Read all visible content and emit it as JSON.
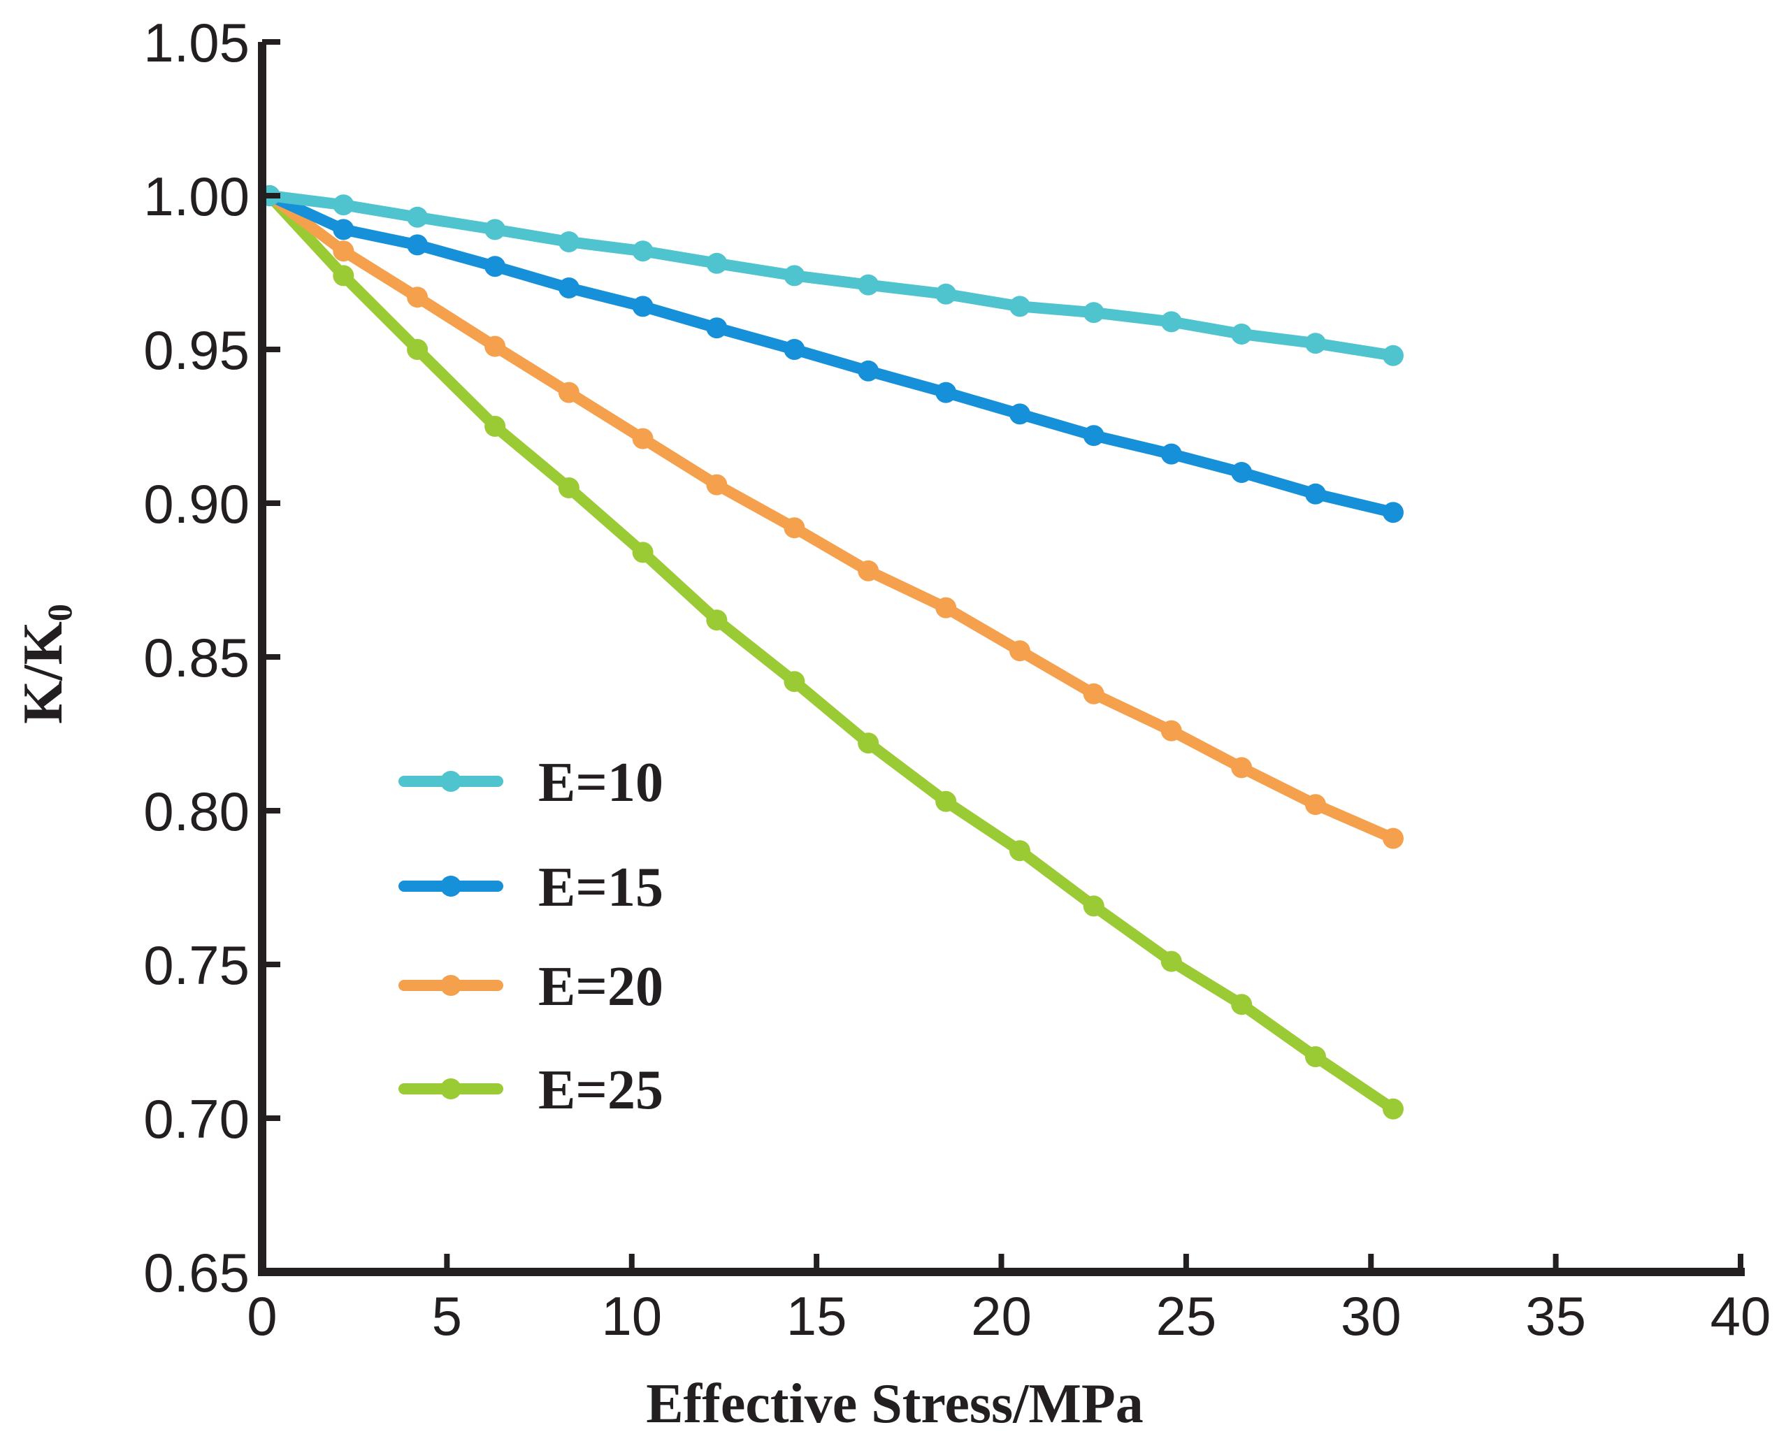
{
  "chart_data": {
    "type": "line",
    "title": "",
    "xlabel": "Effective Stress/MPa",
    "ylabel": {
      "main": "K/K",
      "sub": "0"
    },
    "xlim": [
      0,
      40
    ],
    "ylim": [
      0.65,
      1.05
    ],
    "xticks": [
      "0",
      "5",
      "10",
      "15",
      "20",
      "25",
      "30",
      "35",
      "40"
    ],
    "yticks": [
      "0.65",
      "0.70",
      "0.75",
      "0.80",
      "0.85",
      "0.90",
      "0.95",
      "1.00",
      "1.05"
    ],
    "grid": false,
    "legend_position": "lower-left",
    "x": [
      0.2,
      2.2,
      4.2,
      6.3,
      8.3,
      10.3,
      12.3,
      14.4,
      16.4,
      18.5,
      20.5,
      22.5,
      24.6,
      26.5,
      28.5,
      30.6
    ],
    "series": [
      {
        "name": "E=10",
        "color": "#4fc4cf",
        "values": [
          1.0,
          0.997,
          0.993,
          0.989,
          0.985,
          0.982,
          0.978,
          0.974,
          0.971,
          0.968,
          0.964,
          0.962,
          0.959,
          0.955,
          0.952,
          0.948
        ]
      },
      {
        "name": "E=15",
        "color": "#1590d9",
        "values": [
          1.0,
          0.989,
          0.984,
          0.977,
          0.97,
          0.964,
          0.957,
          0.95,
          0.943,
          0.936,
          0.929,
          0.922,
          0.916,
          0.91,
          0.903,
          0.897
        ]
      },
      {
        "name": "E=20",
        "color": "#f5a04d",
        "values": [
          1.0,
          0.982,
          0.967,
          0.951,
          0.936,
          0.921,
          0.906,
          0.892,
          0.878,
          0.866,
          0.852,
          0.838,
          0.826,
          0.814,
          0.802,
          0.791
        ]
      },
      {
        "name": "E=25",
        "color": "#9acb34",
        "values": [
          1.0,
          0.974,
          0.95,
          0.925,
          0.905,
          0.884,
          0.862,
          0.842,
          0.822,
          0.803,
          0.787,
          0.769,
          0.751,
          0.737,
          0.72,
          0.703
        ]
      }
    ]
  }
}
